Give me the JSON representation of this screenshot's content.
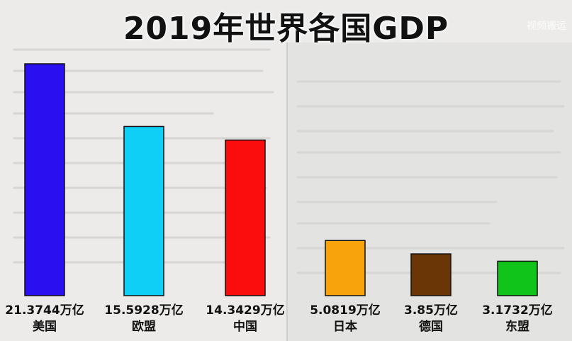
{
  "header": {
    "title": "2019年世界各国GDP",
    "watermark": "视频搬运"
  },
  "chart_data": {
    "type": "bar",
    "title": "2019年世界各国GDP",
    "xlabel": "",
    "ylabel": "",
    "ylim": [
      0,
      21.3744
    ],
    "grid": false,
    "categories": [
      "美国",
      "欧盟",
      "中国",
      "日本",
      "德国",
      "东盟"
    ],
    "values": [
      21.3744,
      15.5928,
      14.3429,
      5.0819,
      3.85,
      3.1732
    ],
    "value_labels": [
      "21.3744万亿",
      "15.5928万亿",
      "14.3429万亿",
      "5.0819万亿",
      "3.85万亿",
      "3.1732万亿"
    ],
    "colors": [
      "#2a0ff0",
      "#10cff6",
      "#fb0d0d",
      "#f8a20c",
      "#6a3606",
      "#10c41a"
    ]
  }
}
